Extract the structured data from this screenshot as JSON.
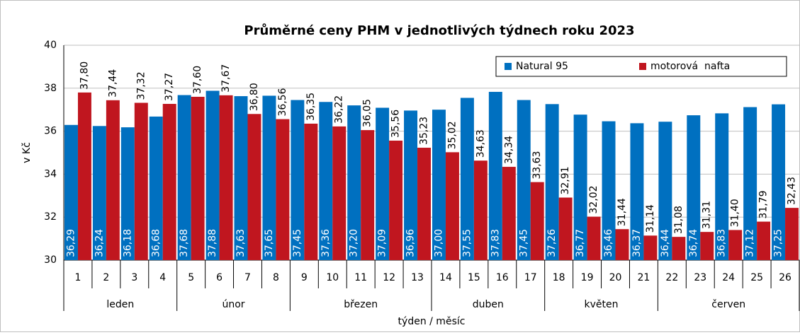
{
  "chart_data": {
    "type": "bar",
    "title": "Průměrné ceny PHM v jednotlivých týdnech roku 2023",
    "y_label": "v Kč",
    "x_label": "týden / měsíc",
    "categories": [
      "1",
      "2",
      "3",
      "4",
      "5",
      "6",
      "7",
      "8",
      "9",
      "10",
      "11",
      "12",
      "13",
      "14",
      "15",
      "16",
      "17",
      "18",
      "19",
      "20",
      "21",
      "22",
      "23",
      "24",
      "25",
      "26"
    ],
    "groups": [
      {
        "name": "leden",
        "span": 4
      },
      {
        "name": "únor",
        "span": 4
      },
      {
        "name": "březen",
        "span": 5
      },
      {
        "name": "duben",
        "span": 4
      },
      {
        "name": "květen",
        "span": 4
      },
      {
        "name": "červen",
        "span": 5
      }
    ],
    "series": [
      {
        "name": "Natural 95",
        "color": "#0070c0",
        "values": [
          36.29,
          36.24,
          36.18,
          36.68,
          37.68,
          37.88,
          37.63,
          37.65,
          37.45,
          37.36,
          37.2,
          37.09,
          36.96,
          37.0,
          37.55,
          37.83,
          37.45,
          37.26,
          36.77,
          36.46,
          36.37,
          36.44,
          36.74,
          36.83,
          37.12,
          37.25
        ],
        "value_labels": [
          "36,29",
          "36,24",
          "36,18",
          "36,68",
          "37,68",
          "37,88",
          "37,63",
          "37,65",
          "37,45",
          "37,36",
          "37,20",
          "37,09",
          "36,96",
          "37,00",
          "37,55",
          "37,83",
          "37,45",
          "37,26",
          "36,77",
          "36,46",
          "36,37",
          "36,44",
          "36,74",
          "36,83",
          "37,12",
          "37,25"
        ]
      },
      {
        "name": "motorová  nafta",
        "color": "#c0161f",
        "values": [
          37.8,
          37.44,
          37.32,
          37.27,
          37.6,
          37.67,
          36.8,
          36.56,
          36.35,
          36.22,
          36.05,
          35.56,
          35.23,
          35.02,
          34.63,
          34.34,
          33.63,
          32.91,
          32.02,
          31.44,
          31.14,
          31.08,
          31.31,
          31.4,
          31.79,
          32.43
        ],
        "value_labels": [
          "37,80",
          "37,44",
          "37,32",
          "37,27",
          "37,60",
          "37,67",
          "36,80",
          "36,56",
          "36,35",
          "36,22",
          "36,05",
          "35,56",
          "35,23",
          "35,02",
          "34,63",
          "34,34",
          "33,63",
          "32,91",
          "32,02",
          "31,44",
          "31,14",
          "31,08",
          "31,31",
          "31,40",
          "31,79",
          "32,43"
        ]
      }
    ],
    "ylim": [
      30,
      40
    ],
    "yticks": [
      30,
      32,
      34,
      36,
      38,
      40
    ],
    "grid": true,
    "legend": "upper right"
  }
}
